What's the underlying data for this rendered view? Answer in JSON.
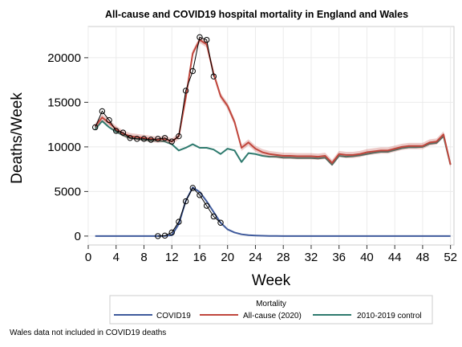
{
  "chart_data": {
    "type": "line",
    "title": "All-cause and COVID19 hospital mortality in England and Wales",
    "xlabel": "Week",
    "ylabel": "Deaths/Week",
    "xlim": [
      0,
      52.5
    ],
    "ylim": [
      -1000,
      23500
    ],
    "xticks": [
      0,
      4,
      8,
      12,
      16,
      20,
      24,
      28,
      32,
      36,
      40,
      44,
      48,
      52
    ],
    "yticks": [
      0,
      5000,
      10000,
      15000,
      20000
    ],
    "grid": true,
    "legend": {
      "title": "Mortality",
      "placement": "bottom"
    },
    "footnote": "Wales data not included in COVID19 deaths",
    "series": [
      {
        "name": "COVID19",
        "color": "#3f5a9c",
        "x": [
          1,
          2,
          3,
          4,
          5,
          6,
          7,
          8,
          9,
          10,
          11,
          12,
          13,
          14,
          15,
          16,
          17,
          18,
          19,
          20,
          21,
          22,
          23,
          24,
          25,
          26,
          27,
          28,
          29,
          30,
          31,
          32,
          33,
          34,
          35,
          36,
          37,
          38,
          39,
          40,
          41,
          42,
          43,
          44,
          45,
          46,
          47,
          48,
          49,
          50,
          51,
          52
        ],
        "y": [
          0,
          0,
          0,
          0,
          0,
          0,
          0,
          0,
          0,
          0,
          10,
          100,
          1350,
          3950,
          5450,
          4950,
          3900,
          2700,
          1500,
          750,
          400,
          200,
          100,
          60,
          30,
          15,
          10,
          5,
          3,
          2,
          1,
          0,
          0,
          0,
          0,
          0,
          0,
          0,
          0,
          0,
          0,
          0,
          0,
          0,
          0,
          0,
          0,
          0,
          0,
          0,
          0,
          0
        ]
      },
      {
        "name": "All-cause (2020)",
        "color": "#c0463c",
        "x": [
          1,
          2,
          3,
          4,
          5,
          6,
          7,
          8,
          9,
          10,
          11,
          12,
          13,
          14,
          15,
          16,
          17,
          18,
          19,
          20,
          21,
          22,
          23,
          24,
          25,
          26,
          27,
          28,
          29,
          30,
          31,
          32,
          33,
          34,
          35,
          36,
          37,
          38,
          39,
          40,
          41,
          42,
          43,
          44,
          45,
          46,
          47,
          48,
          49,
          50,
          51,
          52
        ],
        "y": [
          12300,
          13300,
          12700,
          12000,
          11500,
          11200,
          11100,
          11000,
          10900,
          10800,
          10900,
          10600,
          11200,
          15500,
          20500,
          22000,
          21500,
          18200,
          15700,
          14600,
          12800,
          9900,
          10500,
          9800,
          9400,
          9200,
          9100,
          9000,
          9000,
          8950,
          8950,
          8950,
          8900,
          9000,
          8200,
          9200,
          9100,
          9100,
          9200,
          9400,
          9500,
          9600,
          9600,
          9800,
          10000,
          10100,
          10100,
          10100,
          10500,
          10600,
          11400,
          8000
        ]
      },
      {
        "name": "2010-2019 control",
        "color": "#2e7a6e",
        "x": [
          1,
          2,
          3,
          4,
          5,
          6,
          7,
          8,
          9,
          10,
          11,
          12,
          13,
          14,
          15,
          16,
          17,
          18,
          19,
          20,
          21,
          22,
          23,
          24,
          25,
          26,
          27,
          28,
          29,
          30,
          31,
          32,
          33,
          34,
          35,
          36,
          37,
          38,
          39,
          40,
          41,
          42,
          43,
          44,
          45,
          46,
          47,
          48,
          49,
          50,
          51,
          52
        ],
        "y": [
          12000,
          12900,
          12200,
          11700,
          11300,
          11000,
          10900,
          10800,
          10700,
          10700,
          10600,
          10300,
          9600,
          9900,
          10300,
          9900,
          9900,
          9700,
          9200,
          9800,
          9600,
          8300,
          9300,
          9200,
          9000,
          8900,
          8900,
          8800,
          8800,
          8750,
          8750,
          8750,
          8700,
          8800,
          8000,
          9000,
          8900,
          8950,
          9050,
          9200,
          9350,
          9450,
          9450,
          9650,
          9850,
          9950,
          9950,
          10000,
          10350,
          10450,
          11200,
          8000
        ]
      }
    ],
    "observed": {
      "allcause": {
        "x": [
          1,
          2,
          3,
          4,
          5,
          6,
          7,
          8,
          9,
          10,
          11,
          12,
          13,
          14,
          15,
          16,
          17,
          18
        ],
        "y": [
          12200,
          14000,
          13000,
          11800,
          11600,
          11000,
          10900,
          10900,
          10800,
          10900,
          11000,
          10600,
          11200,
          16300,
          18500,
          22300,
          22000,
          17900
        ]
      },
      "covid": {
        "x": [
          10,
          11,
          12,
          13,
          14,
          15,
          16,
          17,
          18,
          19
        ],
        "y": [
          0,
          50,
          400,
          1600,
          3900,
          5400,
          4600,
          3400,
          2200,
          1500
        ]
      }
    }
  }
}
